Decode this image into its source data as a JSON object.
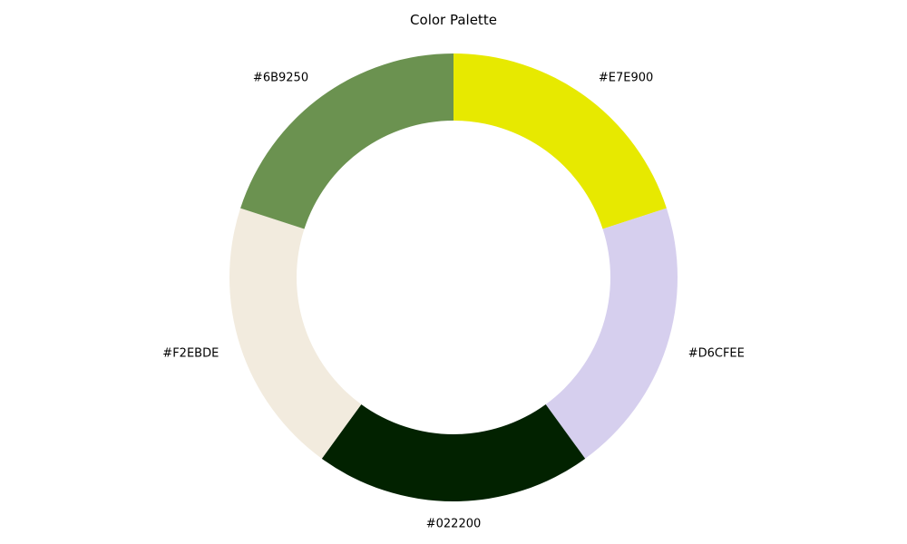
{
  "chart_data": {
    "type": "pie",
    "title": "Color Palette",
    "style": "donut",
    "slices": [
      {
        "label": "#E7E900",
        "value": 20,
        "color": "#E7E900"
      },
      {
        "label": "#D6CFEE",
        "value": 20,
        "color": "#D6CFEE"
      },
      {
        "label": "#022200",
        "value": 20,
        "color": "#022200"
      },
      {
        "label": "#F2EBDE",
        "value": 20,
        "color": "#F2EBDE"
      },
      {
        "label": "#6B9250",
        "value": 20,
        "color": "#6B9250"
      }
    ]
  }
}
